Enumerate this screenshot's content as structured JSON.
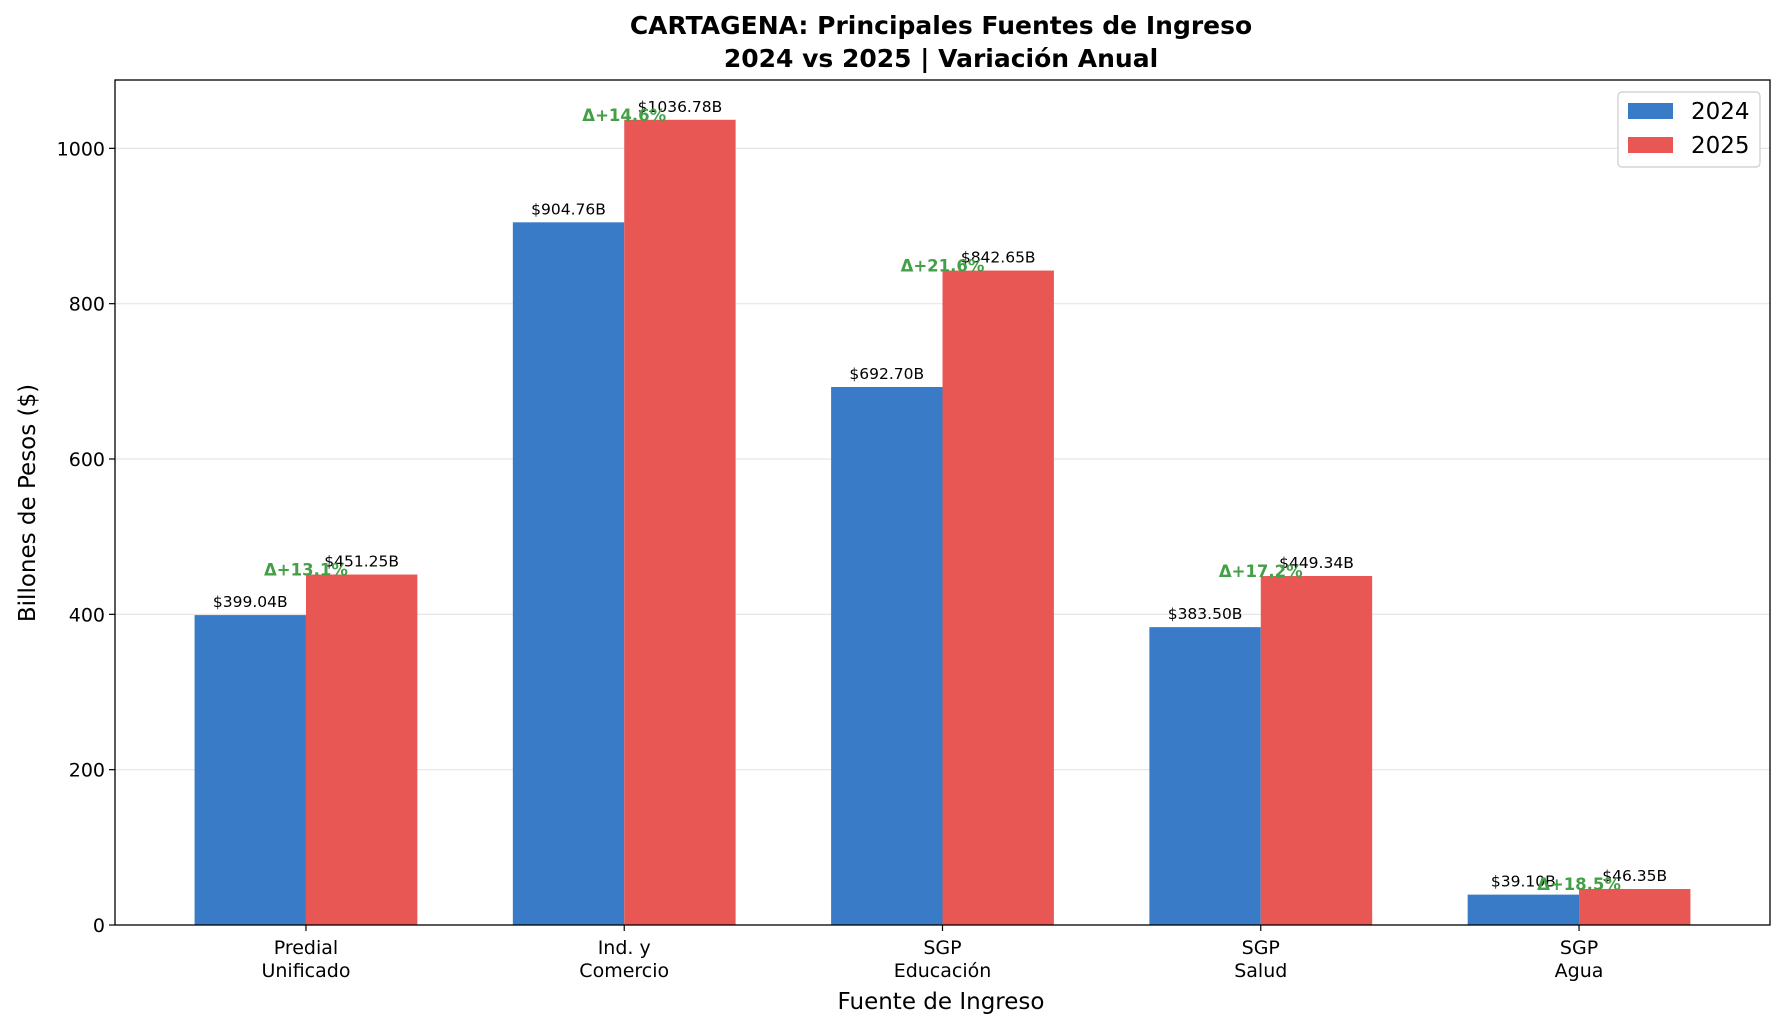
{
  "chart_data": {
    "type": "bar",
    "title_lines": [
      "CARTAGENA: Principales Fuentes de Ingreso",
      "2024 vs 2025 | Variación Anual"
    ],
    "xlabel": "Fuente de Ingreso",
    "ylabel": "Billones de Pesos ($)",
    "ylim": [
      0,
      1088
    ],
    "yticks": [
      0,
      200,
      400,
      600,
      800,
      1000
    ],
    "grid": "horizontal",
    "legend_position": "top-right",
    "categories": [
      [
        "Predial",
        "Unificado"
      ],
      [
        "Ind. y",
        "Comercio"
      ],
      [
        "SGP",
        "Educación"
      ],
      [
        "SGP",
        "Salud"
      ],
      [
        "SGP",
        "Agua"
      ]
    ],
    "series": [
      {
        "name": "2024",
        "color": "#397bc7",
        "values": [
          399.04,
          904.76,
          692.7,
          383.5,
          39.1
        ],
        "labels": [
          "$399.04B",
          "$904.76B",
          "$692.70B",
          "$383.50B",
          "$39.10B"
        ]
      },
      {
        "name": "2025",
        "color": "#e85754",
        "values": [
          451.25,
          1036.78,
          842.65,
          449.34,
          46.35
        ],
        "labels": [
          "$451.25B",
          "$1036.78B",
          "$842.65B",
          "$449.34B",
          "$46.35B"
        ]
      }
    ],
    "deltas": [
      "Δ+13.1%",
      "Δ+14.6%",
      "Δ+21.6%",
      "Δ+17.2%",
      "Δ+18.5%"
    ],
    "delta_color": "#43a047"
  }
}
